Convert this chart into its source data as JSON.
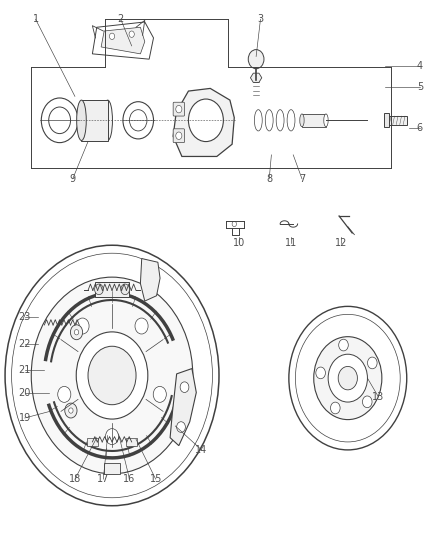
{
  "bg_color": "#ffffff",
  "line_color": "#404040",
  "label_color": "#505050",
  "fig_width": 4.38,
  "fig_height": 5.33,
  "dpi": 100,
  "label_fs": 7.0,
  "label_data": [
    [
      1,
      0.08,
      0.965,
      0.17,
      0.82
    ],
    [
      2,
      0.275,
      0.965,
      0.3,
      0.915
    ],
    [
      3,
      0.595,
      0.965,
      0.585,
      0.895
    ],
    [
      4,
      0.96,
      0.878,
      0.88,
      0.878
    ],
    [
      5,
      0.96,
      0.838,
      0.88,
      0.838
    ],
    [
      6,
      0.96,
      0.76,
      0.935,
      0.76
    ],
    [
      7,
      0.69,
      0.665,
      0.67,
      0.71
    ],
    [
      8,
      0.615,
      0.665,
      0.62,
      0.71
    ],
    [
      9,
      0.165,
      0.665,
      0.2,
      0.735
    ],
    [
      10,
      0.545,
      0.545,
      0.545,
      0.555
    ],
    [
      11,
      0.665,
      0.545,
      0.665,
      0.555
    ],
    [
      12,
      0.78,
      0.545,
      0.78,
      0.555
    ],
    [
      13,
      0.865,
      0.255,
      0.84,
      0.29
    ],
    [
      14,
      0.46,
      0.155,
      0.4,
      0.2
    ],
    [
      15,
      0.355,
      0.1,
      0.31,
      0.175
    ],
    [
      16,
      0.295,
      0.1,
      0.27,
      0.185
    ],
    [
      17,
      0.235,
      0.1,
      0.245,
      0.182
    ],
    [
      18,
      0.17,
      0.1,
      0.22,
      0.178
    ],
    [
      19,
      0.055,
      0.215,
      0.115,
      0.228
    ],
    [
      20,
      0.055,
      0.262,
      0.11,
      0.262
    ],
    [
      21,
      0.055,
      0.305,
      0.1,
      0.305
    ],
    [
      22,
      0.055,
      0.355,
      0.085,
      0.355
    ],
    [
      23,
      0.055,
      0.405,
      0.085,
      0.405
    ]
  ]
}
